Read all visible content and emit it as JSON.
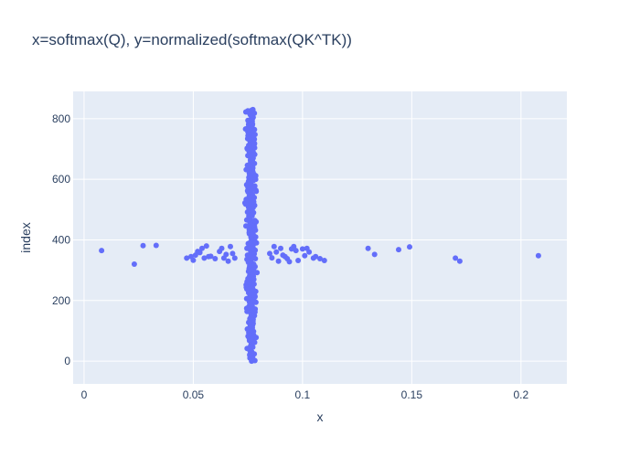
{
  "chart_data": {
    "type": "scatter",
    "title": "x=softmax(Q), y=normalized(softmax(QK^TK))",
    "xlabel": "x",
    "ylabel": "index",
    "xlim": [
      -0.005,
      0.221
    ],
    "ylim": [
      -75,
      890
    ],
    "xticks": [
      0,
      0.05,
      0.1,
      0.15,
      0.2
    ],
    "xtick_labels": [
      "0",
      "0.05",
      "0.1",
      "0.15",
      "0.2"
    ],
    "yticks": [
      0,
      200,
      400,
      600,
      800
    ],
    "ytick_labels": [
      "0",
      "200",
      "400",
      "600",
      "800"
    ],
    "grid": true,
    "marker_color": "#636efa",
    "plot_background": "#e5ecf6",
    "band": {
      "x_center": 0.0765,
      "x_spread": 0.0025,
      "y_from": 0,
      "y_to": 830
    },
    "outliers": [
      [
        0.008,
        365
      ],
      [
        0.023,
        320
      ],
      [
        0.027,
        381
      ],
      [
        0.033,
        382
      ],
      [
        0.047,
        340
      ],
      [
        0.049,
        345
      ],
      [
        0.05,
        333
      ],
      [
        0.051,
        350
      ],
      [
        0.052,
        362
      ],
      [
        0.053,
        358
      ],
      [
        0.054,
        372
      ],
      [
        0.055,
        340
      ],
      [
        0.056,
        380
      ],
      [
        0.057,
        345
      ],
      [
        0.058,
        346
      ],
      [
        0.06,
        338
      ],
      [
        0.062,
        362
      ],
      [
        0.063,
        372
      ],
      [
        0.064,
        340
      ],
      [
        0.065,
        352
      ],
      [
        0.066,
        330
      ],
      [
        0.067,
        378
      ],
      [
        0.068,
        355
      ],
      [
        0.069,
        340
      ],
      [
        0.085,
        355
      ],
      [
        0.086,
        341
      ],
      [
        0.087,
        378
      ],
      [
        0.088,
        360
      ],
      [
        0.089,
        330
      ],
      [
        0.09,
        372
      ],
      [
        0.091,
        350
      ],
      [
        0.092,
        345
      ],
      [
        0.093,
        338
      ],
      [
        0.094,
        328
      ],
      [
        0.095,
        370
      ],
      [
        0.096,
        378
      ],
      [
        0.097,
        365
      ],
      [
        0.098,
        332
      ],
      [
        0.1,
        370
      ],
      [
        0.101,
        348
      ],
      [
        0.102,
        372
      ],
      [
        0.103,
        360
      ],
      [
        0.105,
        340
      ],
      [
        0.106,
        345
      ],
      [
        0.108,
        338
      ],
      [
        0.11,
        332
      ],
      [
        0.13,
        372
      ],
      [
        0.133,
        352
      ],
      [
        0.144,
        368
      ],
      [
        0.149,
        377
      ],
      [
        0.17,
        340
      ],
      [
        0.172,
        330
      ],
      [
        0.208,
        348
      ]
    ]
  }
}
